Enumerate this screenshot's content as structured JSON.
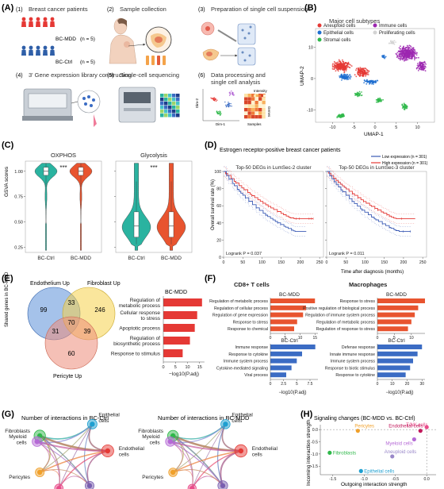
{
  "panels": {
    "A": {
      "label": "(A)",
      "steps": [
        "(1)",
        "(2)",
        "(3)",
        "(4)",
        "(5)",
        "(6)"
      ],
      "step_titles": [
        "Breast cancer patients",
        "Sample collection",
        "Preparation of single cell suspensions",
        "3' Gene expression library construction",
        "Single-cell sequencing",
        "Data processing and single cell analysis"
      ],
      "mdd_label": "BC-MDD",
      "ctrl_label": "BC-Ctrl",
      "n_mdd": "(n = 5)",
      "n_ctrl": "(n = 5)",
      "dim1": "Dim-1",
      "dim2": "Dim-2",
      "heat_y": "Genes",
      "heat_x": "Samples",
      "heat_legend": "Intensity"
    },
    "B": {
      "label": "(B)",
      "title": "Major cell subtypes",
      "legend": [
        {
          "name": "Aneuploid cells",
          "color": "#e53935"
        },
        {
          "name": "Immune cells",
          "color": "#9c27b0"
        },
        {
          "name": "Epithelial cells",
          "color": "#1e6fd0"
        },
        {
          "name": "Proliferating cells",
          "color": "#d4d4d4"
        },
        {
          "name": "Stromal cells",
          "color": "#2fb84a"
        }
      ],
      "xlabel": "UMAP-1",
      "ylabel": "UMAP-2",
      "xticks": [
        "-10",
        "-5",
        "0",
        "5",
        "10"
      ],
      "yticks": [
        "10",
        "0",
        "-10"
      ]
    },
    "C": {
      "label": "(C)",
      "ylabel": "GSVA scores",
      "yticks": [
        "1.00",
        "0.75",
        "0.50",
        "0.25"
      ],
      "plots": [
        {
          "title": "OXPHOS",
          "sig": "***",
          "groups": [
            "BC-Ctrl",
            "BC-MDD"
          ]
        },
        {
          "title": "Glycolysis",
          "sig": "***",
          "groups": [
            "BC-Ctrl",
            "BC-MDD"
          ]
        }
      ],
      "colors": {
        "ctrl": "#2ab3a0",
        "mdd": "#e8542f"
      }
    },
    "D": {
      "label": "(D)",
      "title": "Estrogen receptor-positive breast cancer patients",
      "legend_low": "Low expression (n = 301)",
      "legend_high": "High expression (n = 301)",
      "ylabel": "Overall survival rate (%)",
      "xlabel": "Time after diagnosis  (months)",
      "yticks": [
        "100",
        "80",
        "60",
        "40",
        "20",
        "0"
      ],
      "xticks": [
        "0",
        "50",
        "100",
        "150",
        "200",
        "250"
      ],
      "plots": [
        {
          "title": "Top-50 DEGs in LumSec-2 cluster",
          "p": "Logrank P = 0.037"
        },
        {
          "title": "Top-50 DEGs in LumSec-3 cluster",
          "p": "Logrank P = 0.011"
        }
      ],
      "colors": {
        "low": "#3b5bb5",
        "high": "#e53935"
      }
    },
    "E": {
      "label": "(E)",
      "side_label": "Shared genes in BC-MDD",
      "sets": [
        "Endothelium Up",
        "Fibroblast Up",
        "Pericyte Up"
      ],
      "counts": {
        "a": "99",
        "ab": "33",
        "b": "246",
        "ac": "31",
        "abc": "70",
        "bc": "39",
        "c": "60"
      },
      "bar_title": "BC-MDD",
      "bars": [
        {
          "label": "Regulation of metabolic process",
          "value": 16
        },
        {
          "label": "Cellular response to stress",
          "value": 14
        },
        {
          "label": "Apoptotic process",
          "value": 13
        },
        {
          "label": "Regulation of biosynthetic process",
          "value": 11
        },
        {
          "label": "Response to stimulus",
          "value": 8
        }
      ],
      "xticks": [
        "0",
        "5",
        "10",
        "15"
      ],
      "xlabel": "−log10(P.adj)"
    },
    "F": {
      "label": "(F)",
      "xlabel": "−log10(P.adj)",
      "groups": [
        {
          "title": "CD8+ T cells",
          "mdd_title": "BC-MDD",
          "ctrl_title": "BC-Ctrl",
          "mdd": [
            {
              "label": "Regulation of metabolic process",
              "value": 15
            },
            {
              "label": "Regulation of cellular process",
              "value": 12
            },
            {
              "label": "Regulation of gene expression",
              "value": 11
            },
            {
              "label": "Response to stress",
              "value": 9
            },
            {
              "label": "Response to chemical",
              "value": 8
            }
          ],
          "mdd_ticks": [
            "0",
            "5",
            "10",
            "15"
          ],
          "ctrl": [
            {
              "label": "Immune response",
              "value": 8.5
            },
            {
              "label": "Response to cytokine",
              "value": 6
            },
            {
              "label": "Immune system process",
              "value": 5
            },
            {
              "label": "Cytokine-mediated signaling",
              "value": 4
            },
            {
              "label": "Viral process",
              "value": 3
            }
          ],
          "ctrl_ticks": [
            "0",
            "2.5",
            "5",
            "7.5"
          ]
        },
        {
          "title": "Macrophages",
          "mdd_title": "BC-MDD",
          "ctrl_title": "BC-Ctrl",
          "mdd": [
            {
              "label": "Response to stress",
              "value": 14
            },
            {
              "label": "Positive regulation of biological process",
              "value": 12
            },
            {
              "label": "Regulation of immune system process",
              "value": 11
            },
            {
              "label": "Regulation of metabolic process",
              "value": 10
            },
            {
              "label": "Regulation of response to stress",
              "value": 9
            }
          ],
          "mdd_ticks": [
            "0",
            "5",
            "10"
          ],
          "ctrl": [
            {
              "label": "Defense response",
              "value": 30
            },
            {
              "label": "Innate immune response",
              "value": 27
            },
            {
              "label": "Immune system process",
              "value": 24
            },
            {
              "label": "Response to biotic stimulus",
              "value": 22
            },
            {
              "label": "Response to cytokine",
              "value": 19
            }
          ],
          "ctrl_ticks": [
            "0",
            "10",
            "20",
            "30"
          ]
        }
      ],
      "colors": {
        "mdd": "#e8542f",
        "ctrl": "#3b6cc4"
      }
    },
    "G": {
      "label": "(G)",
      "titles": [
        "Number of interactions in BC-Ctrl",
        "Number of interactions in BC-MDD"
      ],
      "nodes": [
        {
          "name": "Fibroblasts",
          "color": "#2fb84a"
        },
        {
          "name": "Epithelial cells",
          "color": "#1e9fd0"
        },
        {
          "name": "Endothelial cells",
          "color": "#e53935"
        },
        {
          "name": "Aneuploid cells",
          "color": "#7a5fb0"
        },
        {
          "name": "T/NK cells",
          "color": "#e94c8a"
        },
        {
          "name": "Pericytes",
          "color": "#f0a02a"
        },
        {
          "name": "Myeloid cells",
          "color": "#b56ad6"
        }
      ]
    },
    "H": {
      "label": "(H)",
      "title": "Signaling changes  (BC-MDD vs. BC-Ctrl)",
      "xlabel": "Outgoing interaction strength",
      "ylabel": "Incoming interaction strength",
      "xticks": [
        "-1.5",
        "-1.0",
        "-0.5",
        "0.0"
      ],
      "yticks": [
        "0.0",
        "-0.5",
        "-1.0",
        "-1.5"
      ]
    }
  },
  "chart_data": [
    {
      "type": "scatter",
      "title": "Signaling changes  (BC-MDD vs. BC-Ctrl)",
      "xlabel": "Outgoing interaction strength",
      "ylabel": "Incoming interaction strength",
      "xlim": [
        -1.7,
        0.15
      ],
      "ylim": [
        -1.85,
        0.2
      ],
      "points": [
        {
          "label": "T/NK cells",
          "x": 0.0,
          "y": 0.1,
          "color": "#e94c8a"
        },
        {
          "label": "Pericytes",
          "x": -1.1,
          "y": -0.05,
          "color": "#f0a02a"
        },
        {
          "label": "Endothelial cells",
          "x": -0.1,
          "y": -0.05,
          "color": "#c2185b"
        },
        {
          "label": "Myeloid cells",
          "x": -0.2,
          "y": -0.4,
          "color": "#b56ad6"
        },
        {
          "label": "Fibroblasts",
          "x": -1.55,
          "y": -0.95,
          "color": "#2fb84a"
        },
        {
          "label": "Aneuploid cells",
          "x": -0.55,
          "y": -1.1,
          "color": "#9a88c9"
        },
        {
          "label": "Epithelial cells",
          "x": -1.05,
          "y": -1.7,
          "color": "#1e9fd0"
        }
      ]
    }
  ]
}
